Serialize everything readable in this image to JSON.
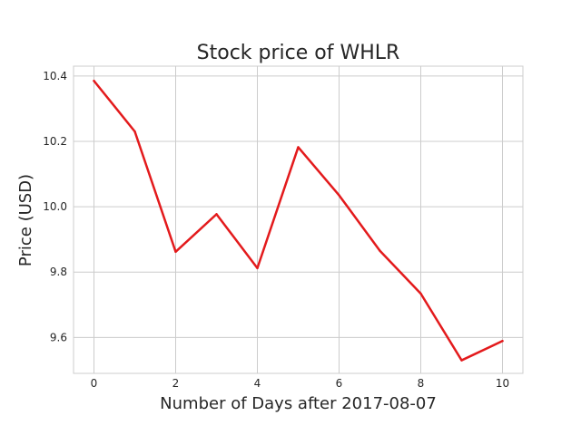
{
  "chart_data": {
    "type": "line",
    "title": "Stock price of WHLR",
    "xlabel": "Number of Days after 2017-08-07",
    "ylabel": "Price (USD)",
    "xlim": [
      -0.5,
      10.5
    ],
    "ylim": [
      9.49,
      10.43
    ],
    "x_ticks": [
      0,
      2,
      4,
      6,
      8,
      10
    ],
    "y_ticks": [
      9.6,
      9.8,
      10.0,
      10.2,
      10.4
    ],
    "x_tick_labels": [
      "0",
      "2",
      "4",
      "6",
      "8",
      "10"
    ],
    "y_tick_labels": [
      "9.6",
      "9.8",
      "10.0",
      "10.2",
      "10.4"
    ],
    "grid": true,
    "series": [
      {
        "color": "#e31a1c",
        "x": [
          0,
          1,
          2,
          3,
          4,
          5,
          6,
          7,
          8,
          9,
          10
        ],
        "values": [
          10.385,
          10.23,
          9.862,
          9.977,
          9.812,
          10.182,
          10.035,
          9.865,
          9.734,
          9.53,
          9.589
        ]
      }
    ]
  }
}
